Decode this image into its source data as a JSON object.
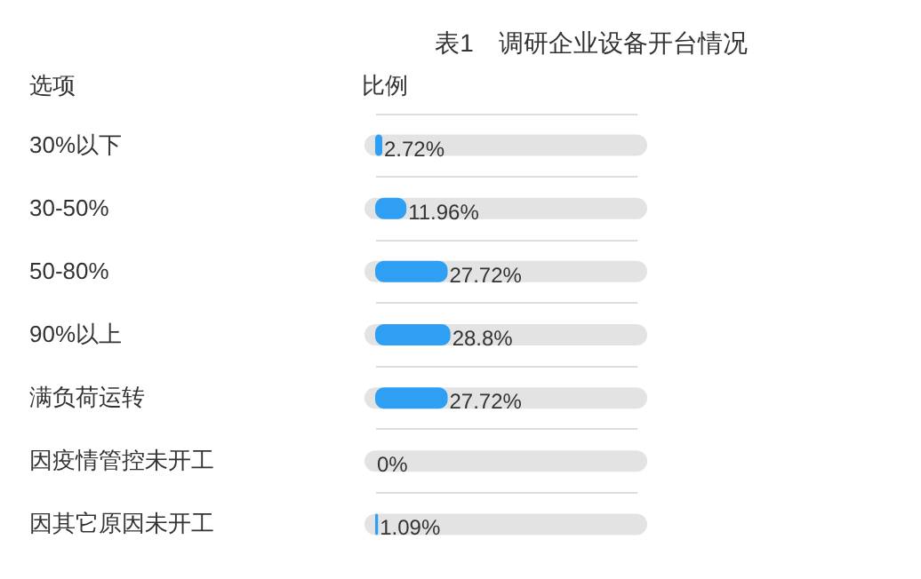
{
  "chart_data": {
    "type": "bar",
    "orientation": "horizontal",
    "title": "表1　调研企业设备开台情况",
    "ylabel": "选项",
    "xlabel": "比例",
    "categories": [
      "30%以下",
      "30-50%",
      "50-80%",
      "90%以上",
      "满负荷运转",
      "因疫情管控未开工",
      "因其它原因未开工"
    ],
    "values": [
      2.72,
      11.96,
      27.72,
      28.8,
      27.72,
      0,
      1.09
    ],
    "value_labels": [
      "2.72%",
      "11.96%",
      "27.72%",
      "28.8%",
      "27.72%",
      "0%",
      "1.09%"
    ],
    "color": "#2e9ff2",
    "tick_labels": false,
    "grid": "y"
  }
}
